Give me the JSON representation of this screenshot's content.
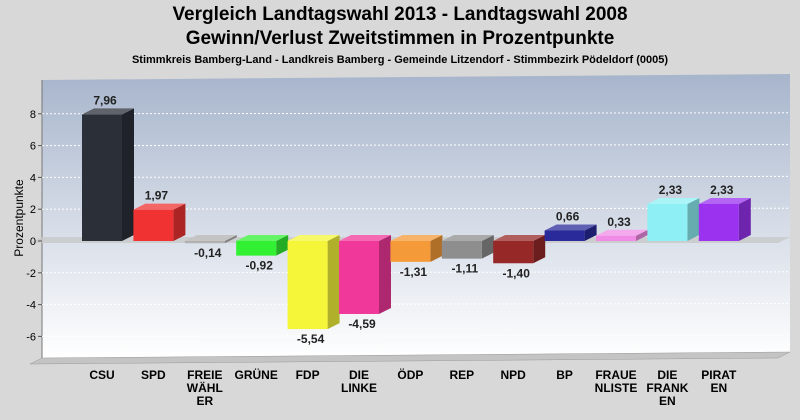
{
  "header": {
    "title_line1": "Vergleich Landtagswahl 2013 - Landtagswahl 2008",
    "title_line2": "Gewinn/Verlust Zweitstimmen in Prozentpunkte",
    "subtitle": "Stimmkreis Bamberg-Land - Landkreis Bamberg - Gemeinde Litzendorf - Stimmbezirk Pödeldorf (0005)"
  },
  "chart_data": {
    "type": "bar",
    "title": "Vergleich Landtagswahl 2013 - Landtagswahl 2008\nGewinn/Verlust Zweitstimmen in Prozentpunkte",
    "subtitle": "Stimmkreis Bamberg-Land - Landkreis Bamberg - Gemeinde Litzendorf - Stimmbezirk Pödeldorf (0005)",
    "ylabel": "Prozentpunkte",
    "xlabel": "",
    "ylim": [
      -7,
      9
    ],
    "yticks": [
      -6,
      -4,
      -2,
      0,
      2,
      4,
      6,
      8
    ],
    "grid": true,
    "categories": [
      "CSU",
      "SPD",
      "FREIE WÄHLER",
      "GRÜNE",
      "FDP",
      "DIE LINKE",
      "ÖDP",
      "REP",
      "NPD",
      "BP",
      "FRAUENLISTE",
      "DIE FRANKEN",
      "PIRATEN"
    ],
    "category_label_lines": [
      [
        "CSU"
      ],
      [
        "SPD"
      ],
      [
        "FREIE",
        "WÄHL",
        "ER"
      ],
      [
        "GRÜNE"
      ],
      [
        "FDP"
      ],
      [
        "DIE",
        "LINKE"
      ],
      [
        "ÖDP"
      ],
      [
        "REP"
      ],
      [
        "NPD"
      ],
      [
        "BP"
      ],
      [
        "FRAUE",
        "NLISTE"
      ],
      [
        "DIE",
        "FRANK",
        "EN"
      ],
      [
        "PIRAT",
        "EN"
      ]
    ],
    "values": [
      7.96,
      1.97,
      -0.14,
      -0.92,
      -5.54,
      -4.59,
      -1.31,
      -1.11,
      -1.4,
      0.66,
      0.33,
      2.33,
      2.33
    ],
    "value_labels": [
      "7,96",
      "1,97",
      "-0,14",
      "-0,92",
      "-5,54",
      "-4,59",
      "-1,31",
      "-1,11",
      "-1,40",
      "0,66",
      "0,33",
      "2,33",
      "2,33"
    ],
    "colors": [
      "#2b2f37",
      "#f03232",
      "#b0b0b0",
      "#32f032",
      "#f5f53a",
      "#f0389a",
      "#f59a38",
      "#8e8e8e",
      "#962828",
      "#2a2a9a",
      "#f08ce6",
      "#8ef0f5",
      "#9a32f0"
    ]
  }
}
